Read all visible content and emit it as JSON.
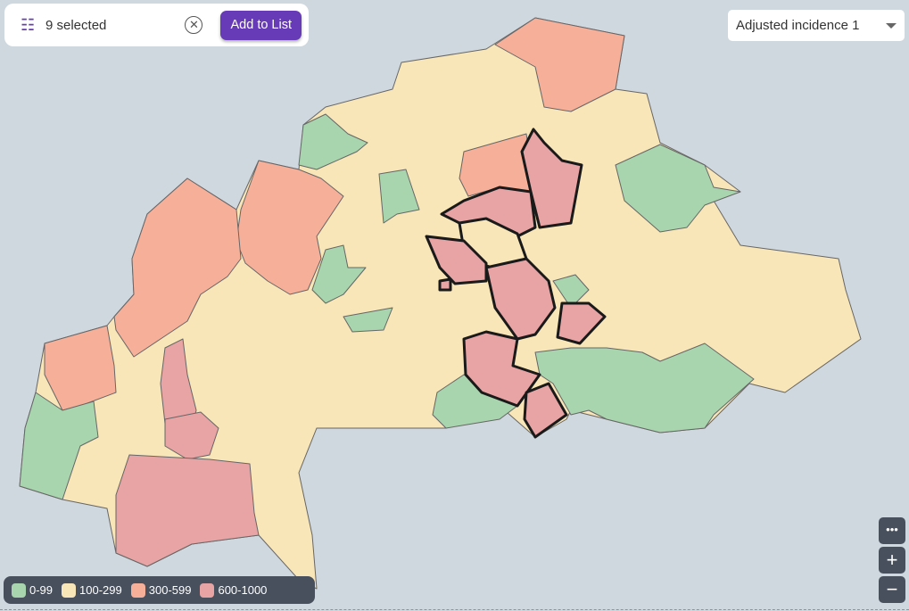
{
  "toolbar": {
    "filter_icon": "tune-icon",
    "selected_text": "9 selected",
    "clear_icon": "cancel-circle-icon",
    "add_label": "Add to List"
  },
  "metric_select": {
    "value": "Adjusted incidence 1"
  },
  "legend": {
    "items": [
      {
        "label": "0-99",
        "color": "#a8d5ae"
      },
      {
        "label": "100-299",
        "color": "#f8e6b8"
      },
      {
        "label": "300-599",
        "color": "#f6b09a"
      },
      {
        "label": "600-1000",
        "color": "#e8a4a4"
      }
    ]
  },
  "map_controls": {
    "more": "•••",
    "zoom_in": "+",
    "zoom_out": "−"
  },
  "map": {
    "selected_count": 9,
    "selected_outline_color": "#1a1a1a",
    "background": "#d0d8df"
  }
}
